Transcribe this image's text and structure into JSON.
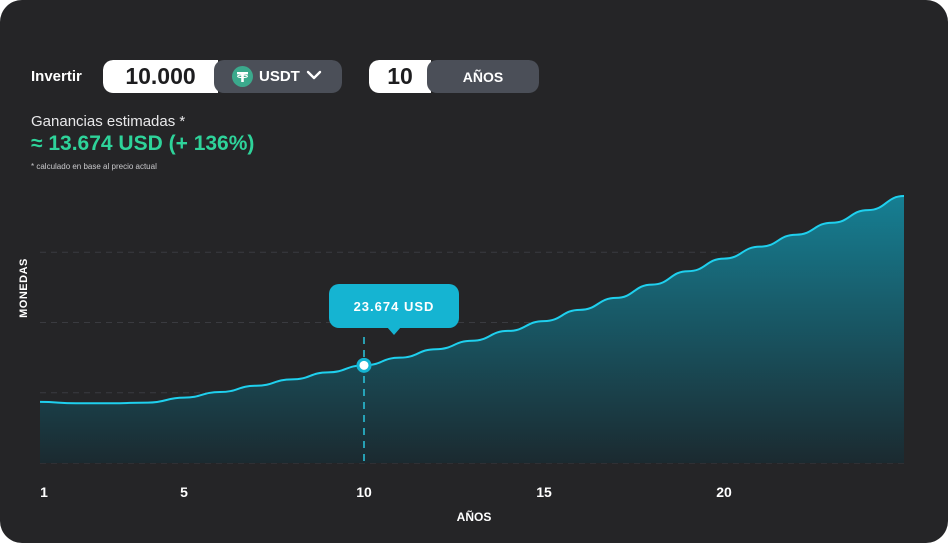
{
  "controls": {
    "invest_label": "Invertir",
    "amount_value": "10.000",
    "token_label": "USDT",
    "token_icon": "tether-icon",
    "dropdown_icon": "chevron-down-icon",
    "years_value": "10",
    "years_unit": "AÑOS"
  },
  "estimate": {
    "label": "Ganancias estimadas *",
    "value": "≈ 13.674 USD (+ 136%)",
    "note": "* calculado en base al precio actual"
  },
  "tooltip": {
    "text": "23.674 USD"
  },
  "colors": {
    "background": "#252527",
    "accent_green": "#2ed39a",
    "line": "#1fd0ee",
    "tooltip": "#15b4d2",
    "pill_dark": "#4b4f58"
  },
  "chart_data": {
    "type": "area",
    "ylabel": "MONEDAS",
    "xlabel": "AÑOS",
    "x_ticks": [
      1,
      5,
      10,
      15,
      20
    ],
    "xlim": [
      1,
      25
    ],
    "ylim": [
      0,
      4
    ],
    "grid": true,
    "highlighted_x": 10,
    "x": [
      1,
      2,
      3,
      4,
      5,
      6,
      7,
      8,
      9,
      10,
      11,
      12,
      13,
      14,
      15,
      16,
      17,
      18,
      19,
      20,
      21,
      22,
      23,
      24,
      25
    ],
    "y": [
      0.87,
      0.85,
      0.85,
      0.86,
      0.93,
      1.01,
      1.1,
      1.19,
      1.29,
      1.39,
      1.5,
      1.62,
      1.74,
      1.88,
      2.02,
      2.18,
      2.35,
      2.54,
      2.73,
      2.91,
      3.08,
      3.25,
      3.42,
      3.6,
      3.8
    ]
  }
}
